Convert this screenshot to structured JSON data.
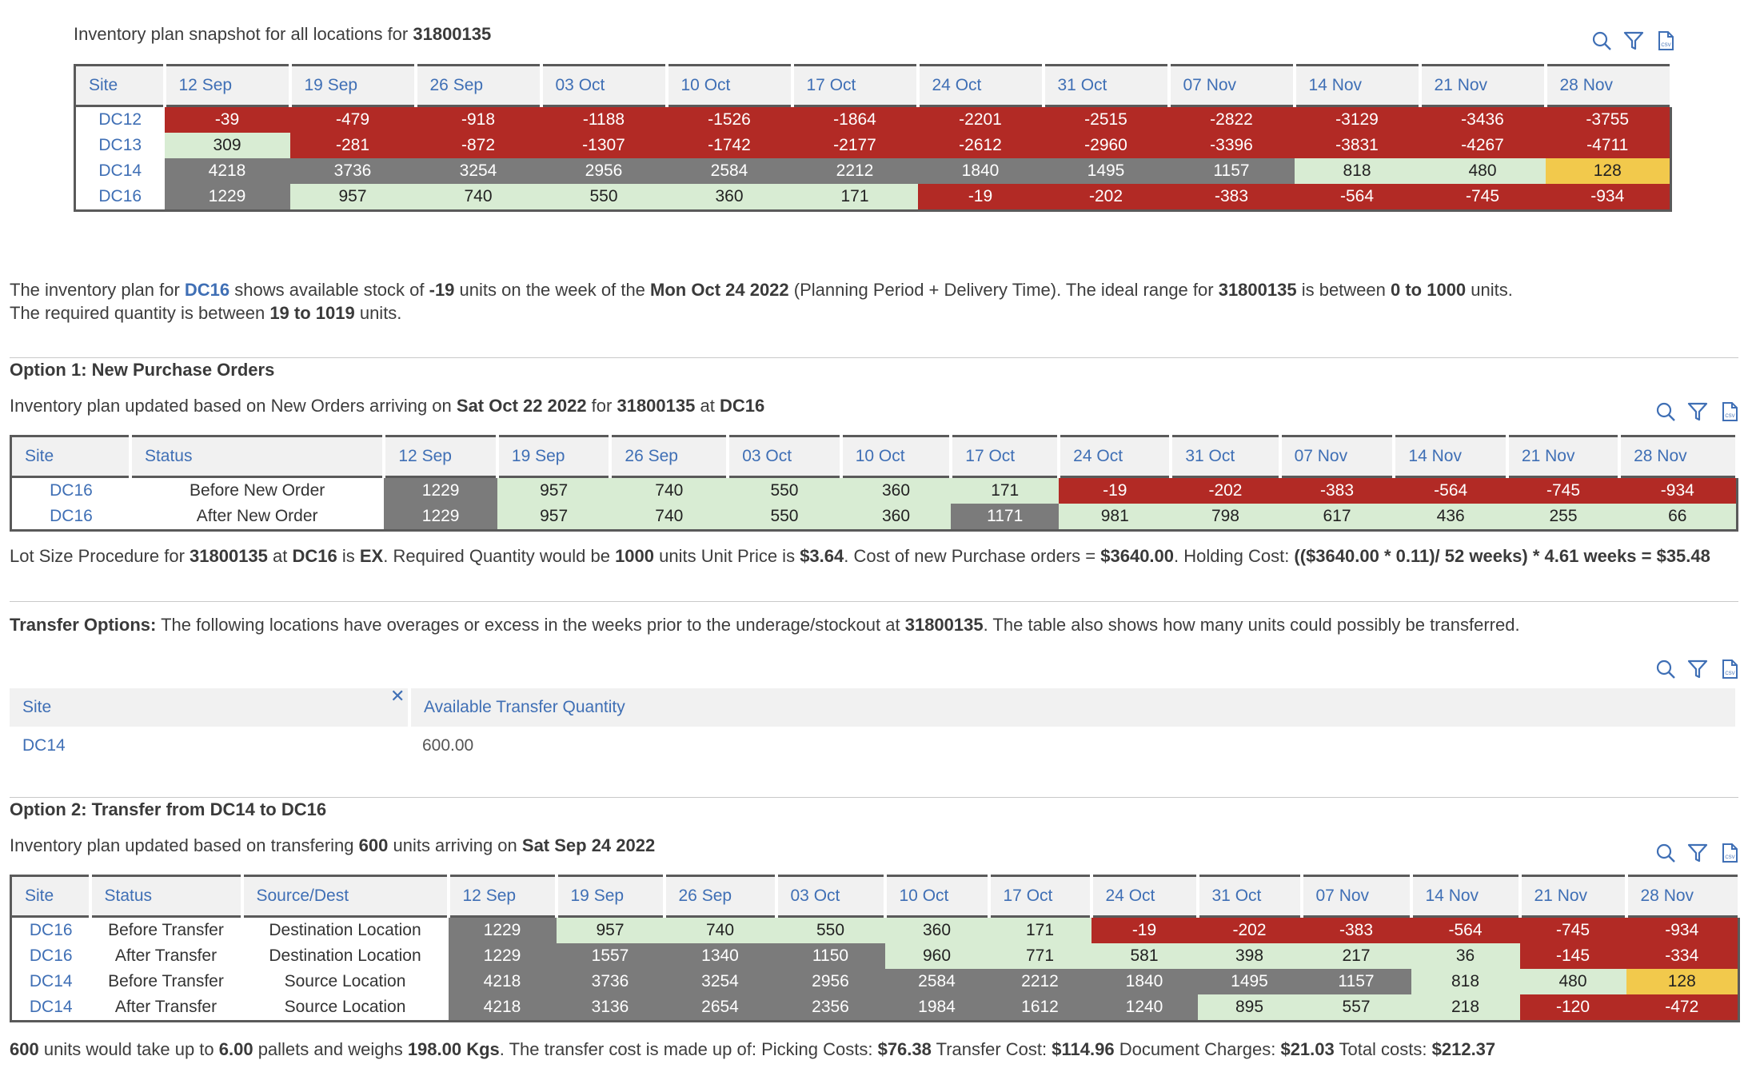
{
  "snapshot": {
    "title_prefix": "Inventory plan snapshot for all locations for ",
    "item": "31800135",
    "columns": [
      "Site",
      "12 Sep",
      "19 Sep",
      "26 Sep",
      "03 Oct",
      "10 Oct",
      "17 Oct",
      "24 Oct",
      "31 Oct",
      "07 Nov",
      "14 Nov",
      "21 Nov",
      "28 Nov"
    ],
    "rows": [
      {
        "site": "DC12",
        "values": [
          "-39",
          "-479",
          "-918",
          "-1188",
          "-1526",
          "-1864",
          "-2201",
          "-2515",
          "-2822",
          "-3129",
          "-3436",
          "-3755"
        ],
        "colors": [
          "r",
          "r",
          "r",
          "r",
          "r",
          "r",
          "r",
          "r",
          "r",
          "r",
          "r",
          "r"
        ]
      },
      {
        "site": "DC13",
        "values": [
          "309",
          "-281",
          "-872",
          "-1307",
          "-1742",
          "-2177",
          "-2612",
          "-2960",
          "-3396",
          "-3831",
          "-4267",
          "-4711"
        ],
        "colors": [
          "g",
          "r",
          "r",
          "r",
          "r",
          "r",
          "r",
          "r",
          "r",
          "r",
          "r",
          "r"
        ]
      },
      {
        "site": "DC14",
        "values": [
          "4218",
          "3736",
          "3254",
          "2956",
          "2584",
          "2212",
          "1840",
          "1495",
          "1157",
          "818",
          "480",
          "128"
        ],
        "colors": [
          "d",
          "d",
          "d",
          "d",
          "d",
          "d",
          "d",
          "d",
          "d",
          "g",
          "g",
          "y"
        ]
      },
      {
        "site": "DC16",
        "values": [
          "1229",
          "957",
          "740",
          "550",
          "360",
          "171",
          "-19",
          "-202",
          "-383",
          "-564",
          "-745",
          "-934"
        ],
        "colors": [
          "d",
          "g",
          "g",
          "g",
          "g",
          "g",
          "r",
          "r",
          "r",
          "r",
          "r",
          "r"
        ]
      }
    ]
  },
  "summary": {
    "p1": "The inventory plan for ",
    "site": "DC16",
    "p2": " shows available stock of ",
    "stock": "-19",
    "p3": " units on the week of the ",
    "date": "Mon Oct 24 2022",
    "p4": " (Planning Period + Delivery Time). The ideal range for ",
    "item": "31800135",
    "p5": " is between ",
    "range": "0 to 1000",
    "p6": " units.",
    "l2a": "The required quantity is between ",
    "req": "19 to 1019",
    "l2b": " units."
  },
  "option1": {
    "heading": "Option 1: New Purchase Orders",
    "sub_a": "Inventory plan updated based on New Orders arriving on ",
    "sub_date": "Sat Oct 22 2022",
    "sub_b": " for ",
    "sub_item": "31800135",
    "sub_c": " at ",
    "sub_site": "DC16",
    "columns": [
      "Site",
      "Status",
      "12 Sep",
      "19 Sep",
      "26 Sep",
      "03 Oct",
      "10 Oct",
      "17 Oct",
      "24 Oct",
      "31 Oct",
      "07 Nov",
      "14 Nov",
      "21 Nov",
      "28 Nov"
    ],
    "rows": [
      {
        "site": "DC16",
        "status": "Before New Order",
        "values": [
          "1229",
          "957",
          "740",
          "550",
          "360",
          "171",
          "-19",
          "-202",
          "-383",
          "-564",
          "-745",
          "-934"
        ],
        "colors": [
          "d",
          "g",
          "g",
          "g",
          "g",
          "g",
          "r",
          "r",
          "r",
          "r",
          "r",
          "r"
        ]
      },
      {
        "site": "DC16",
        "status": "After New Order",
        "values": [
          "1229",
          "957",
          "740",
          "550",
          "360",
          "1171",
          "981",
          "798",
          "617",
          "436",
          "255",
          "66"
        ],
        "colors": [
          "d",
          "g",
          "g",
          "g",
          "g",
          "d",
          "g",
          "g",
          "g",
          "g",
          "g",
          "g"
        ]
      }
    ],
    "lot_a": "Lot Size Procedure for ",
    "lot_item": "31800135",
    "lot_b": " at ",
    "lot_site": "DC16",
    "lot_c": " is ",
    "lot_proc": "EX",
    "lot_d": ". Required Quantity would be ",
    "lot_qty": "1000",
    "lot_e": " units Unit Price is ",
    "lot_price": "$3.64",
    "lot_f": ". Cost of new Purchase orders = ",
    "lot_cost": "$3640.00",
    "lot_g": ". Holding Cost: ",
    "lot_hold": "(($3640.00 * 0.11)/ 52 weeks) * 4.61 weeks = $35.48"
  },
  "transfer": {
    "label": "Transfer Options:",
    "text_a": " The following locations have overages or excess in the weeks prior to the underage/stockout at ",
    "item": "31800135",
    "text_b": ". The table also shows how many units could possibly be transferred.",
    "col_site": "Site",
    "col_qty": "Available Transfer Quantity",
    "row_site": "DC14",
    "row_qty": "600.00"
  },
  "option2": {
    "heading": "Option 2: Transfer from DC14 to DC16",
    "sub_a": "Inventory plan updated based on transfering ",
    "sub_qty": "600",
    "sub_b": " units arriving on ",
    "sub_date": "Sat Sep 24 2022",
    "columns": [
      "Site",
      "Status",
      "Source/Dest",
      "12 Sep",
      "19 Sep",
      "26 Sep",
      "03 Oct",
      "10 Oct",
      "17 Oct",
      "24 Oct",
      "31 Oct",
      "07 Nov",
      "14 Nov",
      "21 Nov",
      "28 Nov"
    ],
    "rows": [
      {
        "site": "DC16",
        "status": "Before Transfer",
        "role": "Destination Location",
        "values": [
          "1229",
          "957",
          "740",
          "550",
          "360",
          "171",
          "-19",
          "-202",
          "-383",
          "-564",
          "-745",
          "-934"
        ],
        "colors": [
          "d",
          "g",
          "g",
          "g",
          "g",
          "g",
          "r",
          "r",
          "r",
          "r",
          "r",
          "r"
        ]
      },
      {
        "site": "DC16",
        "status": "After Transfer",
        "role": "Destination Location",
        "values": [
          "1229",
          "1557",
          "1340",
          "1150",
          "960",
          "771",
          "581",
          "398",
          "217",
          "36",
          "-145",
          "-334"
        ],
        "colors": [
          "d",
          "d",
          "d",
          "d",
          "g",
          "g",
          "g",
          "g",
          "g",
          "g",
          "r",
          "r"
        ]
      },
      {
        "site": "DC14",
        "status": "Before Transfer",
        "role": "Source Location",
        "values": [
          "4218",
          "3736",
          "3254",
          "2956",
          "2584",
          "2212",
          "1840",
          "1495",
          "1157",
          "818",
          "480",
          "128"
        ],
        "colors": [
          "d",
          "d",
          "d",
          "d",
          "d",
          "d",
          "d",
          "d",
          "d",
          "g",
          "g",
          "y"
        ]
      },
      {
        "site": "DC14",
        "status": "After Transfer",
        "role": "Source Location",
        "values": [
          "4218",
          "3136",
          "2654",
          "2356",
          "1984",
          "1612",
          "1240",
          "895",
          "557",
          "218",
          "-120",
          "-472"
        ],
        "colors": [
          "d",
          "d",
          "d",
          "d",
          "d",
          "d",
          "d",
          "g",
          "g",
          "g",
          "r",
          "r"
        ]
      }
    ],
    "foot_qty": "600",
    "foot_a": " units would take up to ",
    "foot_pallets": "6.00",
    "foot_b": " pallets and weighs ",
    "foot_weight": "198.00 Kgs",
    "foot_c": ". The transfer cost is made up of: Picking Costs: ",
    "foot_pick": "$76.38",
    "foot_d": " Transfer Cost: ",
    "foot_trans": "$114.96",
    "foot_e": " Document Charges: ",
    "foot_doc": "$21.03",
    "foot_f": " Total costs: ",
    "foot_total": "$212.37"
  },
  "icons": [
    "search-icon",
    "filter-icon",
    "csv-export-icon"
  ],
  "colors": {
    "red": "#b22a25",
    "green": "#d8ecd3",
    "grey": "#7b7b7b",
    "yellow": "#f2c94c",
    "link": "#3f6fb5"
  }
}
